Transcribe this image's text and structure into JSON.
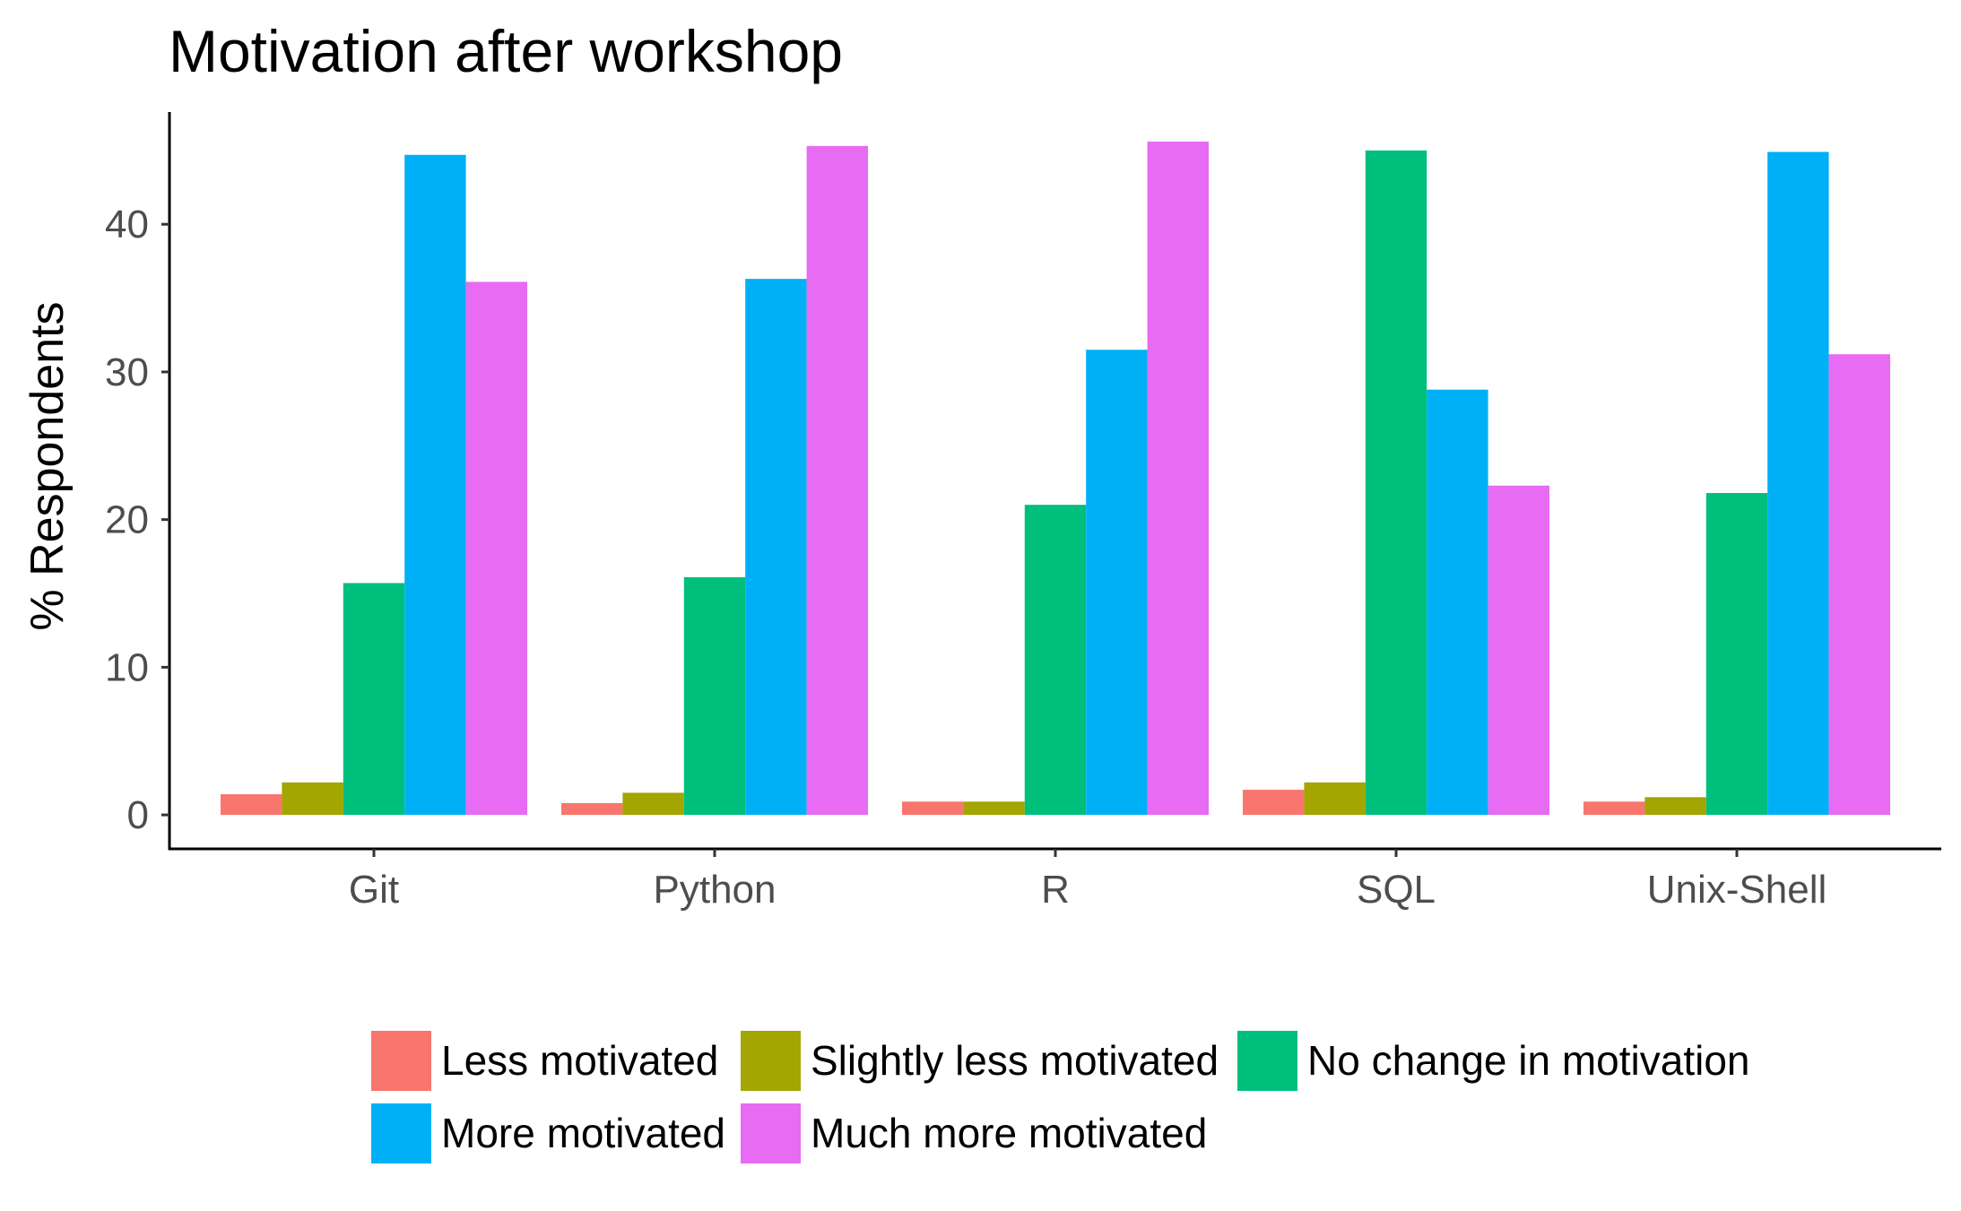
{
  "chart_data": {
    "type": "bar",
    "title": "Motivation after workshop",
    "xlabel": "",
    "ylabel": "% Respondents",
    "categories": [
      "Git",
      "Python",
      "R",
      "SQL",
      "Unix-Shell"
    ],
    "yticks": [
      "0",
      "10",
      "20",
      "30",
      "40"
    ],
    "ylim": [
      -2.3,
      47.6
    ],
    "grid": false,
    "legend_position": "bottom",
    "series": [
      {
        "name": "Less motivated",
        "color": "#F8766D",
        "values": [
          1.4,
          0.8,
          0.9,
          1.7,
          0.9
        ]
      },
      {
        "name": "Slightly less motivated",
        "color": "#A3A500",
        "values": [
          2.2,
          1.5,
          0.9,
          2.2,
          1.2
        ]
      },
      {
        "name": "No change in motivation",
        "color": "#00BF7D",
        "values": [
          15.7,
          16.1,
          21.0,
          45.0,
          21.8
        ]
      },
      {
        "name": "More motivated",
        "color": "#00B0F6",
        "values": [
          44.7,
          36.3,
          31.5,
          28.8,
          44.9
        ]
      },
      {
        "name": "Much more motivated",
        "color": "#E76BF3",
        "values": [
          36.1,
          45.3,
          45.6,
          22.3,
          31.2
        ]
      }
    ]
  }
}
